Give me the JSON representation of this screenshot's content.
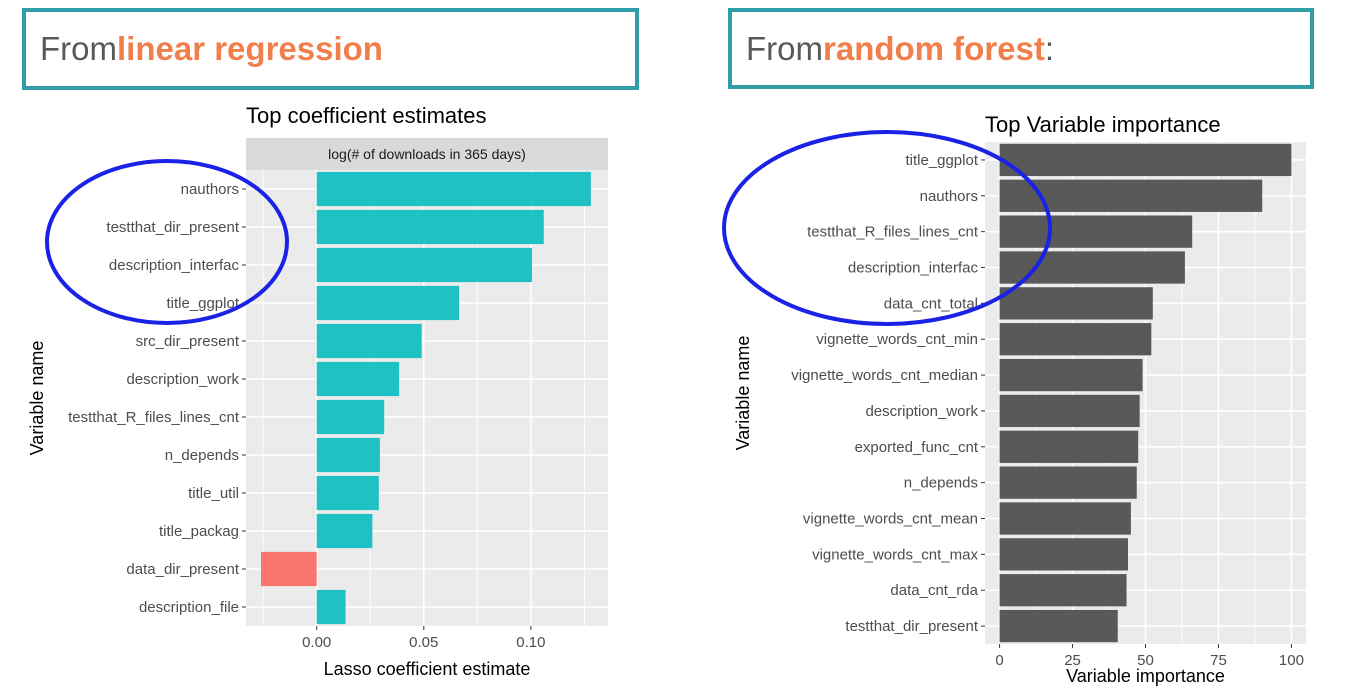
{
  "panels": {
    "left": {
      "prefix": "From ",
      "highlight": "linear regression",
      "suffix": ""
    },
    "right": {
      "prefix": "From ",
      "highlight": "random forest",
      "suffix": ":"
    }
  },
  "colors": {
    "header_border": "#2f9ea8",
    "highlight": "#f07f4c",
    "positive_bar": "#20c1c4",
    "negative_bar": "#f8766d",
    "importance_bar": "#595959",
    "panel_bg": "#ebebeb",
    "annotation_circle": "#1a22e6"
  },
  "chart_data": [
    {
      "type": "bar",
      "orientation": "horizontal",
      "title": "Top coefficient estimates",
      "facet_label": "log(# of downloads in 365 days)",
      "xlabel": "Lasso coefficient estimate",
      "ylabel": "Variable name",
      "categories": [
        "nauthors",
        "testthat_dir_present",
        "description_interfac",
        "title_ggplot",
        "src_dir_present",
        "description_work",
        "testthat_R_files_lines_cnt",
        "n_depends",
        "title_util",
        "title_packag",
        "data_dir_present",
        "description_file"
      ],
      "values": [
        0.128,
        0.106,
        0.1005,
        0.0665,
        0.049,
        0.0385,
        0.0315,
        0.0295,
        0.029,
        0.026,
        -0.026,
        0.0135
      ],
      "xlim": [
        -0.033,
        0.136
      ],
      "xticks": [
        0.0,
        0.05,
        0.1
      ],
      "xtick_labels": [
        "0.00",
        "0.05",
        "0.10"
      ],
      "grid": true
    },
    {
      "type": "bar",
      "orientation": "horizontal",
      "title": "Top Variable importance",
      "xlabel": "Variable importance",
      "ylabel": "Variable name",
      "categories": [
        "title_ggplot",
        "nauthors",
        "testthat_R_files_lines_cnt",
        "description_interfac",
        "data_cnt_total",
        "vignette_words_cnt_min",
        "vignette_words_cnt_median",
        "description_work",
        "exported_func_cnt",
        "n_depends",
        "vignette_words_cnt_mean",
        "vignette_words_cnt_max",
        "data_cnt_rda",
        "testthat_dir_present"
      ],
      "values": [
        100,
        90,
        66,
        63.5,
        52.5,
        52,
        49,
        48,
        47.5,
        47,
        45,
        44,
        43.5,
        40.5
      ],
      "xlim": [
        -5,
        105
      ],
      "xticks": [
        0,
        25,
        50,
        75,
        100
      ],
      "xtick_labels": [
        "0",
        "25",
        "50",
        "75",
        "100"
      ],
      "grid": true
    }
  ]
}
